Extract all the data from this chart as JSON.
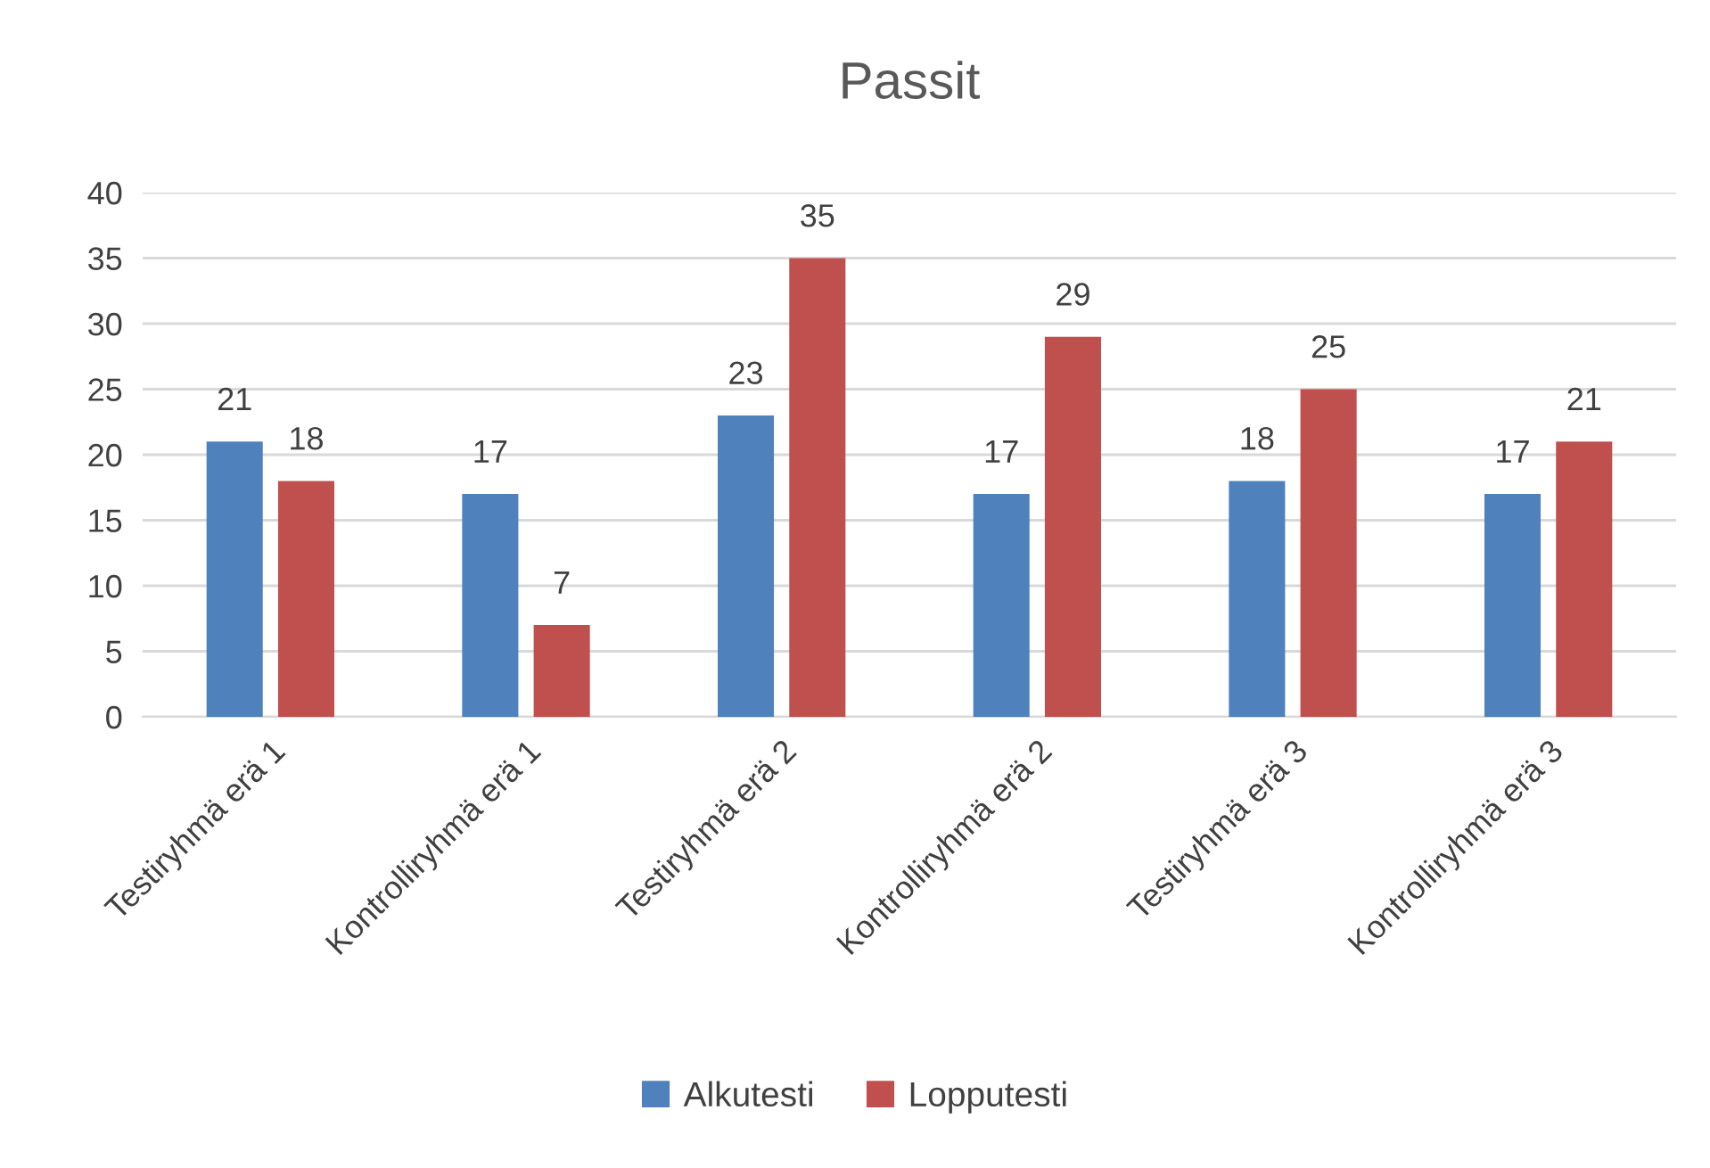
{
  "chart_data": {
    "type": "bar",
    "title": "Passit",
    "categories": [
      "Testiryhmä erä 1",
      "Kontrolliryhmä erä 1",
      "Testiryhmä erä 2",
      "Kontrolliryhmä erä 2",
      "Testiryhmä erä 3",
      "Kontrolliryhmä erä 3"
    ],
    "series": [
      {
        "name": "Alkutesti",
        "color": "#4f81bd",
        "values": [
          21,
          17,
          23,
          17,
          18,
          17
        ]
      },
      {
        "name": "Lopputesti",
        "color": "#c0504d",
        "values": [
          18,
          7,
          35,
          29,
          25,
          21
        ]
      }
    ],
    "ylim": [
      0,
      40
    ],
    "yticks": [
      0,
      5,
      10,
      15,
      20,
      25,
      30,
      35,
      40
    ],
    "grid": "y",
    "legend": "bottom",
    "data_labels": true
  }
}
